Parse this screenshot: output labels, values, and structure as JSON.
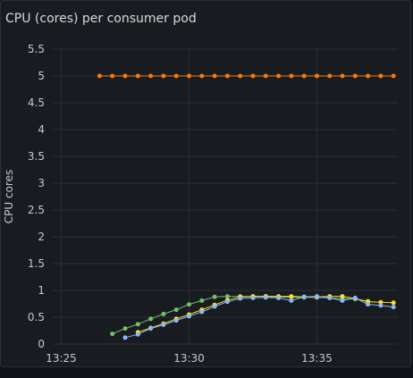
{
  "panel": {
    "title": "CPU (cores) per consumer pod"
  },
  "colors": {
    "background": "#181b1f",
    "grid": "#2c2f35",
    "text": "#c7c8cc"
  },
  "chart_data": {
    "type": "line",
    "title": "CPU (cores) per consumer pod",
    "xlabel": "",
    "ylabel": "CPU cores",
    "xlim": [
      "13:24:40",
      "13:38:10"
    ],
    "ylim": [
      0,
      5.5
    ],
    "x_ticks": [
      "13:25",
      "13:30",
      "13:35"
    ],
    "y_ticks": [
      "0",
      "0.5",
      "1",
      "1.5",
      "2",
      "2.5",
      "3",
      "3.5",
      "4",
      "4.5",
      "5",
      "5.5"
    ],
    "grid": true,
    "legend": "none",
    "series": [
      {
        "color": "#ff780a",
        "points": [
          [
            "13:26:30",
            5.0
          ],
          [
            "13:27:00",
            5.0
          ],
          [
            "13:27:30",
            5.0
          ],
          [
            "13:28:00",
            5.0
          ],
          [
            "13:28:30",
            5.0
          ],
          [
            "13:29:00",
            5.0
          ],
          [
            "13:29:30",
            5.0
          ],
          [
            "13:30:00",
            5.0
          ],
          [
            "13:30:30",
            5.0
          ],
          [
            "13:31:00",
            5.0
          ],
          [
            "13:31:30",
            5.0
          ],
          [
            "13:32:00",
            5.0
          ],
          [
            "13:32:30",
            5.0
          ],
          [
            "13:33:00",
            5.0
          ],
          [
            "13:33:30",
            5.0
          ],
          [
            "13:34:00",
            5.0
          ],
          [
            "13:34:30",
            5.0
          ],
          [
            "13:35:00",
            5.0
          ],
          [
            "13:35:30",
            5.0
          ],
          [
            "13:36:00",
            5.0
          ],
          [
            "13:36:30",
            5.0
          ],
          [
            "13:37:00",
            5.0
          ],
          [
            "13:37:30",
            5.0
          ],
          [
            "13:38:00",
            5.0
          ]
        ]
      },
      {
        "color": "#73bf69",
        "points": [
          [
            "13:27:00",
            0.19
          ],
          [
            "13:27:30",
            0.29
          ],
          [
            "13:28:00",
            0.37
          ],
          [
            "13:28:30",
            0.47
          ],
          [
            "13:29:00",
            0.56
          ],
          [
            "13:29:30",
            0.64
          ],
          [
            "13:30:00",
            0.74
          ],
          [
            "13:30:30",
            0.81
          ],
          [
            "13:31:00",
            0.88
          ],
          [
            "13:31:30",
            0.89
          ],
          [
            "13:32:00",
            0.89
          ],
          [
            "13:32:30",
            0.89
          ],
          [
            "13:33:00",
            0.89
          ],
          [
            "13:33:30",
            0.88
          ],
          [
            "13:34:00",
            0.87
          ],
          [
            "13:34:30",
            0.87
          ],
          [
            "13:35:00",
            0.87
          ],
          [
            "13:35:30",
            0.86
          ],
          [
            "13:36:00",
            0.85
          ],
          [
            "13:36:30",
            0.84
          ],
          [
            "13:37:00",
            0.8
          ]
        ]
      },
      {
        "color": "#fade2a",
        "points": [
          [
            "13:28:00",
            0.22
          ],
          [
            "13:28:30",
            0.3
          ],
          [
            "13:29:00",
            0.38
          ],
          [
            "13:29:30",
            0.47
          ],
          [
            "13:30:00",
            0.55
          ],
          [
            "13:30:30",
            0.64
          ],
          [
            "13:31:00",
            0.73
          ],
          [
            "13:31:30",
            0.82
          ],
          [
            "13:32:00",
            0.88
          ],
          [
            "13:32:30",
            0.89
          ],
          [
            "13:33:00",
            0.89
          ],
          [
            "13:33:30",
            0.89
          ],
          [
            "13:34:00",
            0.89
          ],
          [
            "13:34:30",
            0.88
          ],
          [
            "13:35:00",
            0.88
          ],
          [
            "13:35:30",
            0.89
          ],
          [
            "13:36:00",
            0.89
          ],
          [
            "13:36:30",
            0.85
          ],
          [
            "13:37:00",
            0.79
          ],
          [
            "13:37:30",
            0.78
          ],
          [
            "13:38:00",
            0.77
          ]
        ]
      },
      {
        "color": "#8ab8ff",
        "points": [
          [
            "13:27:30",
            0.12
          ],
          [
            "13:28:00",
            0.18
          ],
          [
            "13:28:30",
            0.29
          ],
          [
            "13:29:00",
            0.36
          ],
          [
            "13:29:30",
            0.44
          ],
          [
            "13:30:00",
            0.52
          ],
          [
            "13:30:30",
            0.6
          ],
          [
            "13:31:00",
            0.7
          ],
          [
            "13:31:30",
            0.79
          ],
          [
            "13:32:00",
            0.85
          ],
          [
            "13:32:30",
            0.86
          ],
          [
            "13:33:00",
            0.87
          ],
          [
            "13:33:30",
            0.86
          ],
          [
            "13:34:00",
            0.81
          ],
          [
            "13:34:30",
            0.88
          ],
          [
            "13:35:00",
            0.89
          ],
          [
            "13:35:30",
            0.86
          ],
          [
            "13:36:00",
            0.81
          ],
          [
            "13:36:30",
            0.86
          ],
          [
            "13:37:00",
            0.74
          ],
          [
            "13:37:30",
            0.72
          ],
          [
            "13:38:00",
            0.69
          ]
        ]
      }
    ]
  }
}
